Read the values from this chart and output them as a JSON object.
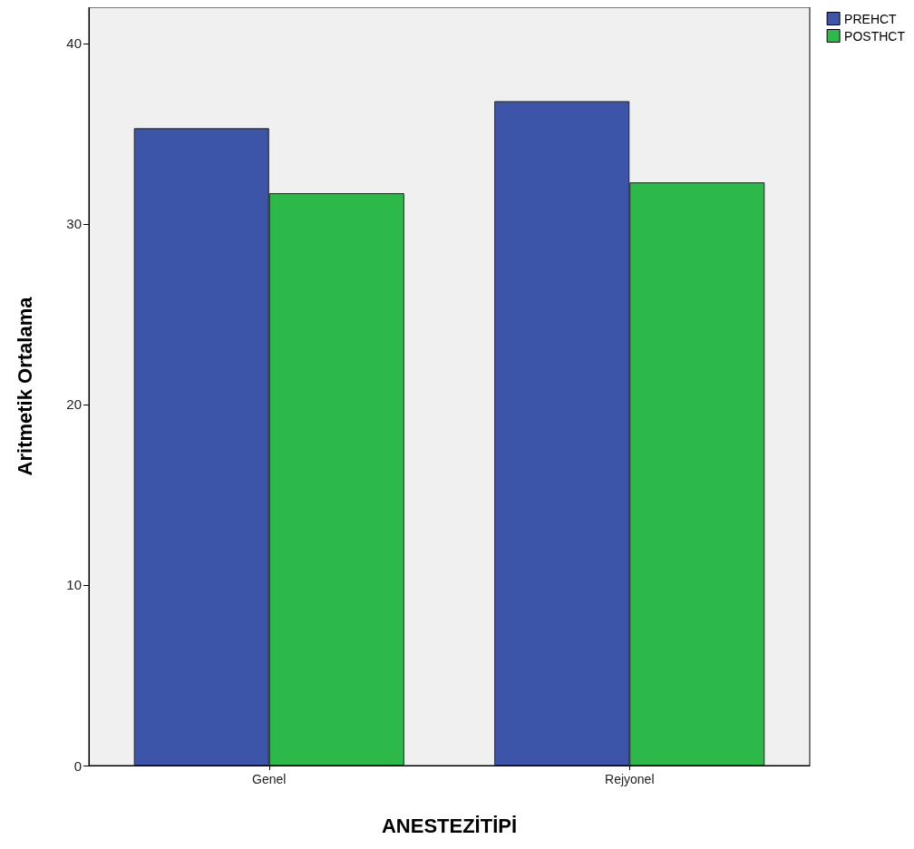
{
  "chart_data": {
    "type": "bar",
    "xlabel": "ANESTEZİTİPİ",
    "ylabel": "Aritmetik Ortalama",
    "categories": [
      "Genel",
      "Rejyonel"
    ],
    "series": [
      {
        "name": "PREHCT",
        "color": "#3d55a8",
        "values": [
          35.3,
          36.8
        ]
      },
      {
        "name": "POSTHCT",
        "color": "#2db84a",
        "values": [
          31.7,
          32.3
        ]
      }
    ],
    "ylim": [
      0,
      42
    ],
    "yticks": [
      0,
      10,
      20,
      30,
      40
    ],
    "grid": false,
    "legend": "top right"
  }
}
